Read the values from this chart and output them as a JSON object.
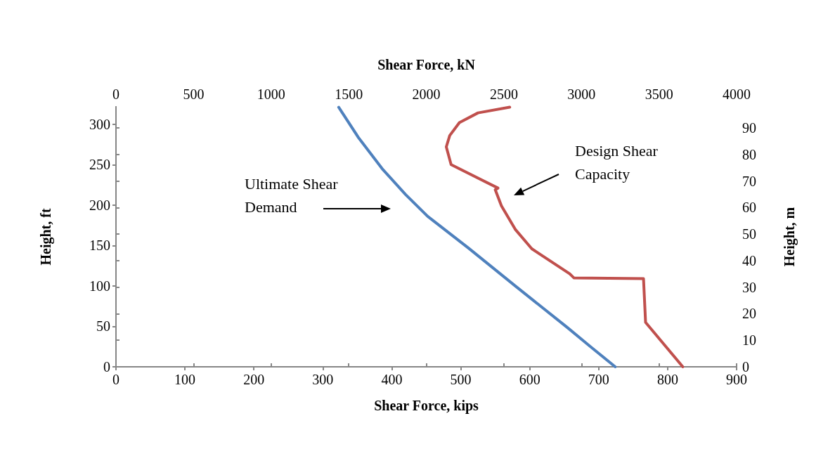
{
  "chart_data": {
    "type": "line",
    "xlabel": "Shear Force, kips",
    "x2label": "Shear Force, kN",
    "ylabel": "Height, ft",
    "y2label": "Height, m",
    "xlim": [
      0,
      900
    ],
    "xticks": [
      0,
      100,
      200,
      300,
      400,
      500,
      600,
      700,
      800,
      900
    ],
    "x2lim": [
      0,
      4000
    ],
    "x2ticks": [
      0,
      500,
      1000,
      1500,
      2000,
      2500,
      3000,
      3500,
      4000
    ],
    "ylim": [
      0,
      321.5
    ],
    "yticks": [
      0,
      50,
      100,
      150,
      200,
      250,
      300
    ],
    "y2lim": [
      0,
      98
    ],
    "y2ticks": [
      0,
      10,
      20,
      30,
      40,
      50,
      60,
      70,
      80,
      90
    ],
    "grid": false,
    "marker": "none",
    "line_style": "solid",
    "series": [
      {
        "color": "#4f81bd",
        "x": [
          724,
          688,
          654,
          579,
          511,
          452,
          420,
          386,
          352,
          323
        ],
        "values": [
          0,
          25,
          49,
          100,
          147,
          186,
          213,
          245,
          283,
          321
        ]
      },
      {
        "color": "#c0504d",
        "x": [
          822,
          768,
          765,
          664,
          658,
          603,
          579,
          559,
          550,
          554,
          486,
          479,
          484,
          498,
          525,
          571
        ],
        "values": [
          0,
          55,
          109,
          110,
          115,
          146,
          170,
          199,
          219,
          221,
          250,
          272,
          286,
          302,
          314,
          321
        ]
      }
    ],
    "annotations": [
      "Ultimate Shear Demand",
      "Design Shear Capacity"
    ]
  }
}
